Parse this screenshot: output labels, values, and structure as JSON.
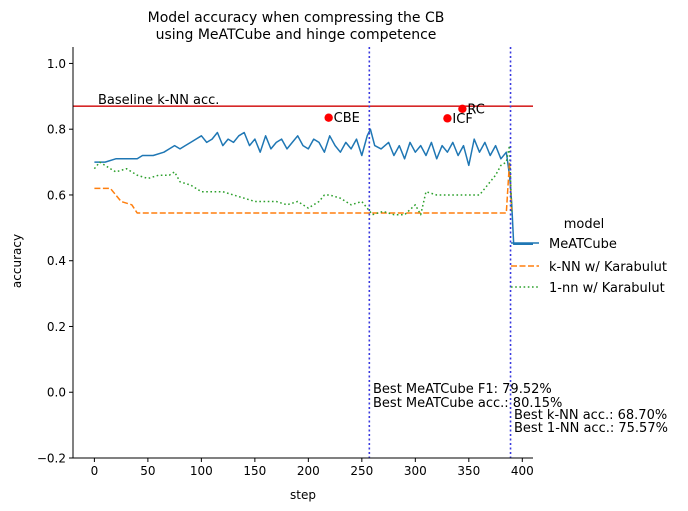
{
  "chart_data": {
    "type": "line",
    "title": [
      "Model accuracy when compressing the CB",
      "using MeATCube and hinge competence"
    ],
    "xlabel": "step",
    "ylabel": "accuracy",
    "xlim": [
      -20,
      410
    ],
    "ylim": [
      -0.2,
      1.05
    ],
    "xticks": [
      0,
      50,
      100,
      150,
      200,
      250,
      300,
      350,
      400
    ],
    "yticks": [
      -0.2,
      0.0,
      0.2,
      0.4,
      0.6,
      0.8,
      1.0
    ],
    "xtick_labels": [
      "0",
      "50",
      "100",
      "150",
      "200",
      "250",
      "300",
      "350",
      "400"
    ],
    "ytick_labels": [
      "−0.2",
      "0.0",
      "0.2",
      "0.4",
      "0.6",
      "0.8",
      "1.0"
    ],
    "grid": false,
    "legend": {
      "title": "model",
      "placement": "right"
    },
    "series": [
      {
        "name": "MeATCube",
        "color": "#1f77b4",
        "style": "solid",
        "x": [
          0,
          10,
          20,
          30,
          40,
          45,
          55,
          65,
          70,
          75,
          80,
          85,
          90,
          95,
          100,
          105,
          110,
          115,
          120,
          125,
          130,
          135,
          140,
          145,
          150,
          155,
          160,
          165,
          170,
          175,
          180,
          185,
          190,
          195,
          200,
          205,
          210,
          215,
          220,
          225,
          230,
          235,
          240,
          245,
          250,
          255,
          258,
          262,
          268,
          275,
          280,
          285,
          290,
          295,
          300,
          305,
          310,
          315,
          320,
          325,
          330,
          335,
          340,
          345,
          350,
          355,
          360,
          365,
          370,
          375,
          380,
          385,
          388,
          390,
          392,
          395,
          400,
          410
        ],
        "values": [
          0.7,
          0.7,
          0.71,
          0.71,
          0.71,
          0.72,
          0.72,
          0.73,
          0.74,
          0.75,
          0.74,
          0.75,
          0.76,
          0.77,
          0.78,
          0.76,
          0.77,
          0.79,
          0.75,
          0.77,
          0.76,
          0.78,
          0.79,
          0.75,
          0.77,
          0.73,
          0.78,
          0.74,
          0.76,
          0.77,
          0.74,
          0.76,
          0.78,
          0.75,
          0.74,
          0.77,
          0.76,
          0.73,
          0.78,
          0.75,
          0.73,
          0.76,
          0.74,
          0.77,
          0.72,
          0.78,
          0.8,
          0.75,
          0.74,
          0.76,
          0.72,
          0.75,
          0.71,
          0.76,
          0.73,
          0.75,
          0.72,
          0.76,
          0.71,
          0.75,
          0.73,
          0.76,
          0.72,
          0.75,
          0.69,
          0.77,
          0.73,
          0.76,
          0.72,
          0.75,
          0.71,
          0.73,
          0.66,
          0.58,
          0.45,
          0.45,
          0.45,
          0.45
        ]
      },
      {
        "name": "k-NN w/ Karabulut",
        "color": "#ff7f0e",
        "style": "dashed",
        "x": [
          0,
          15,
          20,
          25,
          35,
          40,
          100,
          200,
          300,
          385,
          388,
          390
        ],
        "values": [
          0.62,
          0.62,
          0.6,
          0.58,
          0.57,
          0.545,
          0.545,
          0.545,
          0.545,
          0.545,
          0.7,
          0.55
        ]
      },
      {
        "name": "1-nn w/ Karabulut",
        "color": "#2ca02c",
        "style": "dotted",
        "x": [
          0,
          5,
          10,
          15,
          20,
          30,
          40,
          50,
          60,
          70,
          75,
          80,
          90,
          100,
          110,
          120,
          130,
          140,
          150,
          160,
          170,
          180,
          190,
          200,
          210,
          215,
          220,
          230,
          240,
          250,
          255,
          260,
          270,
          280,
          290,
          300,
          305,
          310,
          320,
          330,
          340,
          350,
          360,
          370,
          375,
          380,
          385,
          388,
          390
        ],
        "values": [
          0.68,
          0.7,
          0.69,
          0.68,
          0.67,
          0.68,
          0.66,
          0.65,
          0.66,
          0.66,
          0.67,
          0.64,
          0.63,
          0.61,
          0.61,
          0.61,
          0.6,
          0.59,
          0.58,
          0.58,
          0.58,
          0.57,
          0.58,
          0.56,
          0.58,
          0.6,
          0.6,
          0.59,
          0.57,
          0.58,
          0.56,
          0.54,
          0.55,
          0.54,
          0.54,
          0.57,
          0.54,
          0.61,
          0.6,
          0.6,
          0.6,
          0.6,
          0.6,
          0.64,
          0.66,
          0.69,
          0.7,
          0.75,
          0.55
        ]
      }
    ],
    "baseline": {
      "y": 0.87,
      "label": "Baseline k-NN acc.",
      "color": "#d62728"
    },
    "vlines": [
      {
        "x": 257,
        "color": "#3a3adf"
      },
      {
        "x": 389,
        "color": "#3a3adf"
      }
    ],
    "points": [
      {
        "label": "CBE",
        "x": 219,
        "y": 0.835
      },
      {
        "label": "ICF",
        "x": 330,
        "y": 0.833
      },
      {
        "label": "RC",
        "x": 344,
        "y": 0.862
      }
    ],
    "annotations": [
      "Best MeATCube F1: 79.52%",
      "Best MeATCube acc.: 80.15%",
      "Best k-NN acc.: 68.70%",
      "Best 1-NN acc.: 75.57%"
    ]
  }
}
